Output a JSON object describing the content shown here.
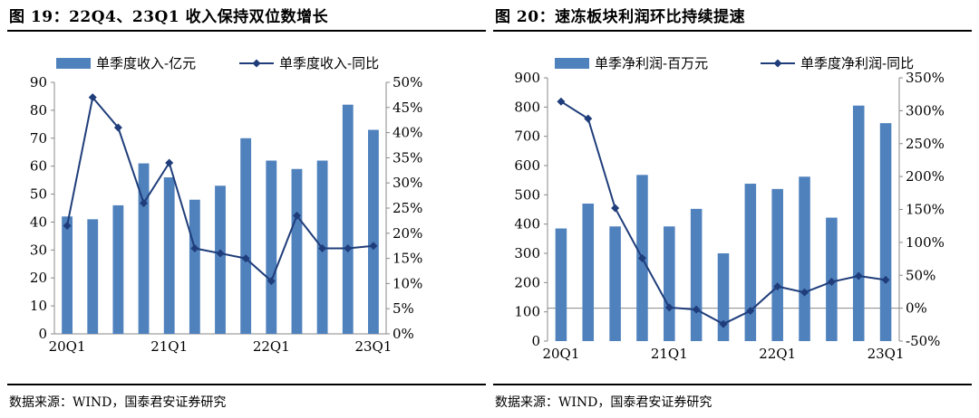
{
  "charts": [
    {
      "title": "图 19：22Q4、23Q1 收入保持双位数增长",
      "source": "数据来源：WIND，国泰君安证券研究",
      "chart_data": {
        "type": "bar",
        "categories": [
          "20Q1",
          "20Q2",
          "20Q3",
          "20Q4",
          "21Q1",
          "21Q2",
          "21Q3",
          "21Q4",
          "22Q1",
          "22Q2",
          "22Q3",
          "22Q4",
          "23Q1"
        ],
        "x_tick_labels": [
          "20Q1",
          "",
          "",
          "",
          "21Q1",
          "",
          "",
          "",
          "22Q1",
          "",
          "",
          "",
          "23Q1"
        ],
        "series": [
          {
            "name": "单季度收入-亿元",
            "type": "bar",
            "axis": "left",
            "values": [
              42,
              41,
              46,
              61,
              56,
              48,
              53,
              70,
              62,
              59,
              62,
              82,
              73
            ]
          },
          {
            "name": "单季度收入-同比",
            "type": "line",
            "axis": "right",
            "values": [
              21.5,
              47,
              41,
              26,
              34,
              17,
              16,
              15,
              10.5,
              23.5,
              17,
              17,
              17.5
            ]
          }
        ],
        "y_left": {
          "min": 0,
          "max": 90,
          "step": 10,
          "ticks": [
            "0",
            "10",
            "20",
            "30",
            "40",
            "50",
            "60",
            "70",
            "80",
            "90"
          ]
        },
        "y_right": {
          "min": 0,
          "max": 50,
          "step": 5,
          "ticks": [
            "0%",
            "5%",
            "10%",
            "15%",
            "20%",
            "25%",
            "30%",
            "35%",
            "40%",
            "45%",
            "50%"
          ]
        },
        "legend_position": "top",
        "grid": false,
        "colors": {
          "bar": "#4f81bd",
          "line": "#1f3d7a"
        }
      }
    },
    {
      "title": "图 20：速冻板块利润环比持续提速",
      "source": "数据来源：WIND，国泰君安证券研究",
      "chart_data": {
        "type": "bar",
        "categories": [
          "20Q1",
          "20Q2",
          "20Q3",
          "20Q4",
          "21Q1",
          "21Q2",
          "21Q3",
          "21Q4",
          "22Q1",
          "22Q2",
          "22Q3",
          "22Q4",
          "23Q1"
        ],
        "x_tick_labels": [
          "20Q1",
          "",
          "",
          "",
          "21Q1",
          "",
          "",
          "",
          "22Q1",
          "",
          "",
          "",
          "23Q1"
        ],
        "series": [
          {
            "name": "单季净利润-百万元",
            "type": "bar",
            "axis": "left",
            "values": [
              385,
              470,
              392,
              568,
              392,
              452,
              300,
              538,
              520,
              562,
              422,
              805,
              745
            ]
          },
          {
            "name": "单季度净利润-同比",
            "type": "line",
            "axis": "right",
            "values": [
              314,
              288,
              152,
              76,
              1,
              -2,
              -24,
              -4,
              33,
              24,
              40,
              49,
              43
            ]
          }
        ],
        "y_left": {
          "min": 0,
          "max": 900,
          "step": 100,
          "ticks": [
            "0",
            "100",
            "200",
            "300",
            "400",
            "500",
            "600",
            "700",
            "800",
            "900"
          ]
        },
        "y_right": {
          "min": -50,
          "max": 350,
          "step": 50,
          "ticks": [
            "-50%",
            "0%",
            "50%",
            "100%",
            "150%",
            "200%",
            "250%",
            "300%",
            "350%"
          ]
        },
        "legend_position": "top",
        "grid": false,
        "colors": {
          "bar": "#4f81bd",
          "line": "#1f3d7a"
        }
      }
    }
  ]
}
